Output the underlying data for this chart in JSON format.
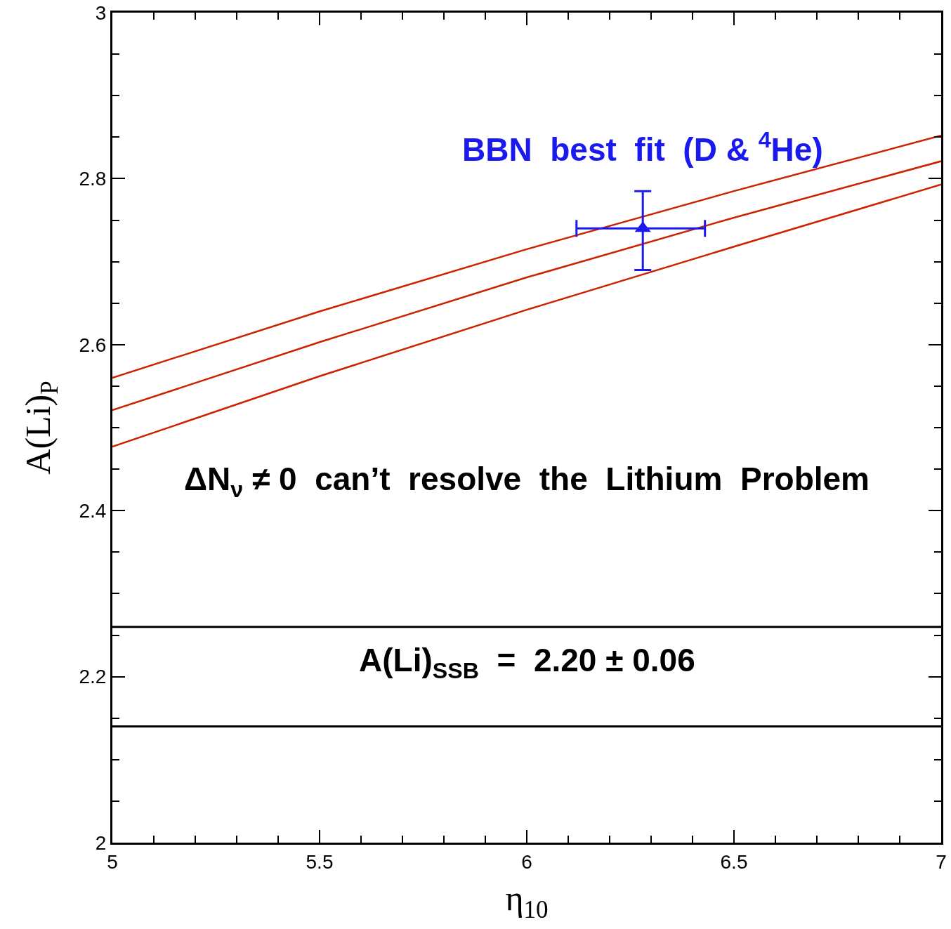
{
  "chart_data": {
    "type": "line",
    "xlabel": "η$_{10}$",
    "ylabel": "A(Li)$_{P}$",
    "x": [
      5,
      5.5,
      6,
      6.5,
      7
    ],
    "series": [
      {
        "color": "#cc2200",
        "values": [
          2.56,
          2.64,
          2.715,
          2.785,
          2.852
        ]
      },
      {
        "color": "#cc2200",
        "values": [
          2.521,
          2.603,
          2.681,
          2.753,
          2.821
        ]
      },
      {
        "color": "#cc2200",
        "values": [
          2.477,
          2.562,
          2.642,
          2.718,
          2.793
        ]
      },
      {
        "type": "scatter",
        "color": "#1a1aee",
        "x": [
          6.28
        ],
        "values": [
          2.74
        ],
        "errors": [
          [
            2.69,
            2.785
          ]
        ],
        "xerrors": [
          [
            6.12,
            6.43
          ]
        ],
        "marker": "triangle"
      }
    ],
    "xlim": [
      5,
      7
    ],
    "ylim": [
      2,
      3
    ],
    "xticks": [
      5,
      5.5,
      6,
      6.5,
      7
    ],
    "yticks": [
      2,
      2.2,
      2.4,
      2.6,
      2.8,
      3
    ],
    "grid": false,
    "marker": "none",
    "line_style": "solid",
    "ref_lines": [
      {
        "axis": "y",
        "value": 2.26,
        "color": "#000000"
      },
      {
        "axis": "y",
        "value": 2.14,
        "color": "#000000"
      }
    ],
    "annotations": [
      {
        "text": "BBN  best  fit  (D & $^{4}$He)",
        "x": 6.28,
        "y": 2.74
      },
      "ΔN$_{ν}$ ≠ 0  can’t  resolve  the  Lithium  Problem",
      "A(Li)$_{SSB}$  =  2.20 ± 0.06"
    ]
  }
}
